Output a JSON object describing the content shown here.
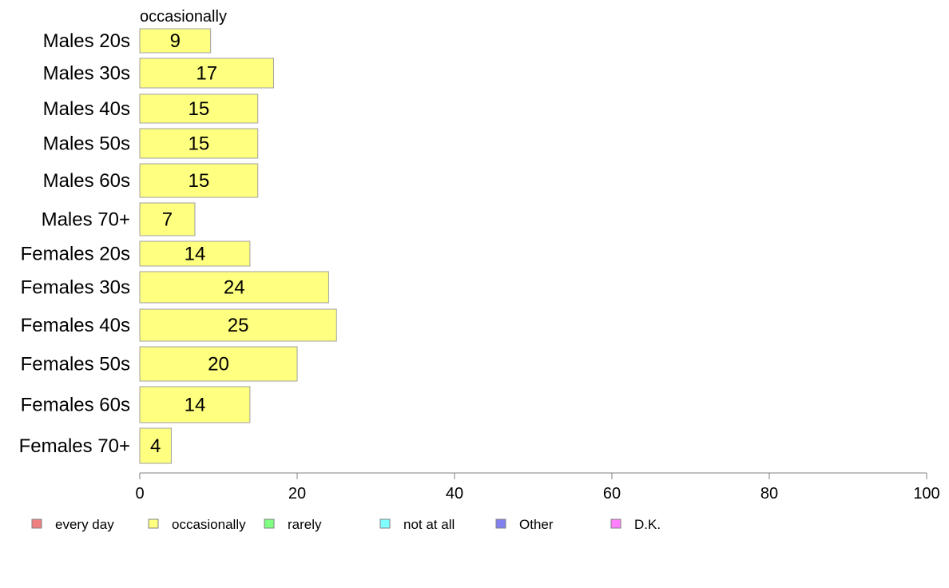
{
  "chart_data": {
    "type": "bar",
    "orientation": "horizontal",
    "series_label": "occasionally",
    "categories": [
      "Males 20s",
      "Males 30s",
      "Males 40s",
      "Males 50s",
      "Males 60s",
      "Males 70+",
      "Females 20s",
      "Females 30s",
      "Females 40s",
      "Females 50s",
      "Females 60s",
      "Females 70+"
    ],
    "series": [
      {
        "name": "occasionally",
        "values": [
          9,
          17,
          15,
          15,
          15,
          7,
          14,
          24,
          25,
          20,
          14,
          4
        ]
      }
    ],
    "data_labels": [
      "9",
      "17",
      "15",
      "15",
      "15",
      "7",
      "14",
      "24",
      "25",
      "20",
      "14",
      "4"
    ],
    "xlim": [
      0,
      100
    ],
    "x_ticks": [
      0,
      20,
      40,
      60,
      80,
      100
    ],
    "grid": false,
    "legend": {
      "placement": "bottom",
      "entries": [
        {
          "label": "every day",
          "color": "#f08080"
        },
        {
          "label": "occasionally",
          "color": "#ffff80"
        },
        {
          "label": "rarely",
          "color": "#80ff80"
        },
        {
          "label": "not at all",
          "color": "#80ffff"
        },
        {
          "label": "Other",
          "color": "#8080f0"
        },
        {
          "label": "D.K.",
          "color": "#ff80ff"
        }
      ]
    },
    "bar_color": "#ffff80",
    "bar_border_color": "#a0a0a0"
  }
}
